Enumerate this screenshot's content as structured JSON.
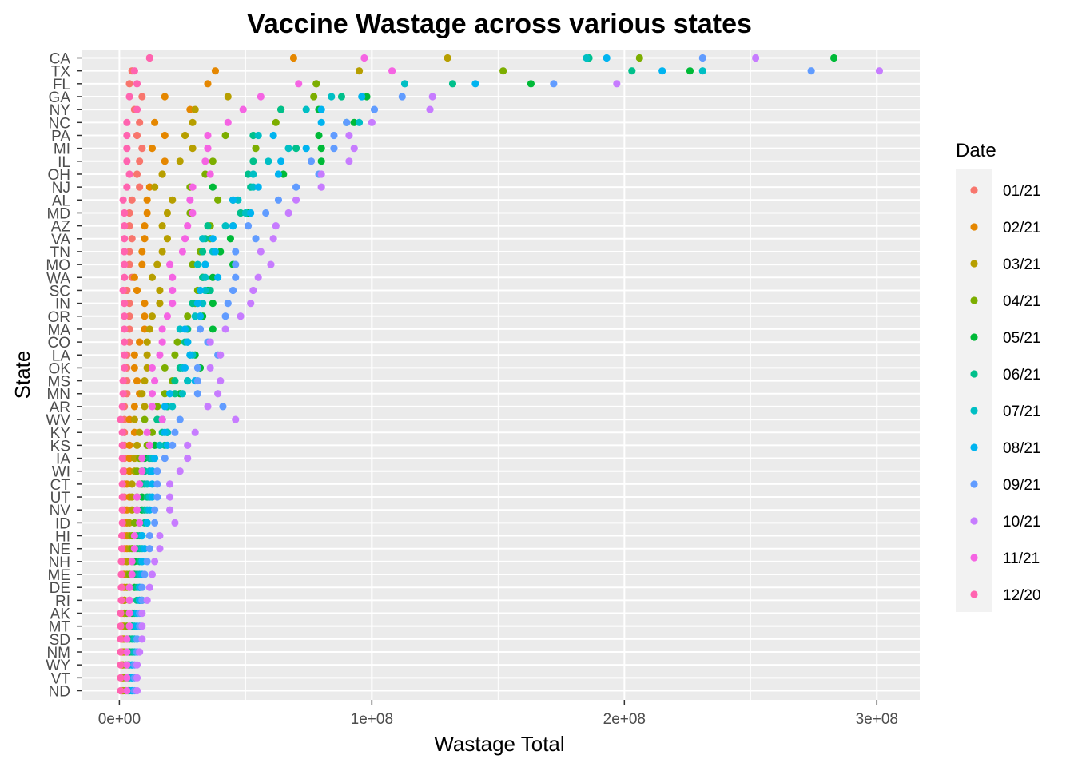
{
  "chart_data": {
    "type": "scatter",
    "title": "Vaccine Wastage across various states",
    "xlabel": "Wastage Total",
    "ylabel": "State",
    "xlim": [
      -15000000,
      317000000
    ],
    "x_ticks": [
      0,
      100000000,
      200000000,
      300000000
    ],
    "x_tick_labels": [
      "0e+00",
      "1e+08",
      "2e+08",
      "3e+08"
    ],
    "grid": true,
    "legend": {
      "title": "Date",
      "position": "right"
    },
    "categories": [
      "CA",
      "TX",
      "FL",
      "GA",
      "NY",
      "NC",
      "PA",
      "MI",
      "IL",
      "OH",
      "NJ",
      "AL",
      "MD",
      "AZ",
      "VA",
      "TN",
      "MO",
      "WA",
      "SC",
      "IN",
      "OR",
      "MA",
      "CO",
      "LA",
      "OK",
      "MS",
      "MN",
      "AR",
      "WV",
      "KY",
      "KS",
      "IA",
      "WI",
      "CT",
      "UT",
      "NV",
      "ID",
      "HI",
      "NE",
      "NH",
      "ME",
      "DE",
      "RI",
      "AK",
      "MT",
      "SD",
      "NM",
      "WY",
      "VT",
      "ND"
    ],
    "series": [
      {
        "name": "01/21",
        "color": "#F8766D",
        "values": [
          12,
          5,
          4,
          9,
          6,
          8,
          7,
          9,
          8,
          7,
          8,
          5,
          4,
          4,
          5,
          4,
          4,
          5,
          3,
          4,
          4,
          4,
          4,
          3,
          3,
          3,
          3,
          2,
          2,
          2,
          2,
          2,
          2,
          2,
          2,
          2,
          2,
          2,
          2,
          1.5,
          1.5,
          1.2,
          1.2,
          1,
          1,
          1,
          1,
          0.8,
          0.8,
          0.8
        ]
      },
      {
        "name": "02/21",
        "color": "#E58700",
        "values": [
          69,
          38,
          35,
          18,
          28,
          14,
          18,
          13,
          18,
          17,
          12,
          11,
          11,
          10,
          10,
          9,
          9,
          6,
          7,
          10,
          10,
          10,
          8,
          6,
          6,
          7,
          8,
          6,
          4,
          6,
          4,
          4,
          4,
          3,
          4,
          3,
          3,
          3,
          3,
          3,
          2,
          2,
          2,
          2,
          1.5,
          1.5,
          1.5,
          1.2,
          1.2,
          1.2
        ]
      },
      {
        "name": "03/21",
        "color": "#B79F00",
        "values": [
          130,
          95,
          78,
          43,
          30,
          29,
          26,
          29,
          24,
          17,
          14,
          21,
          19,
          17,
          19,
          17,
          15,
          13,
          16,
          16,
          13,
          12,
          11,
          11,
          11,
          10,
          9,
          10,
          6,
          8,
          7,
          6,
          6,
          5,
          5,
          5,
          4,
          4,
          4,
          3,
          3,
          3,
          2,
          2,
          2,
          2,
          2,
          1.5,
          1.5,
          1.5
        ]
      },
      {
        "name": "04/21",
        "color": "#7CAE00",
        "values": [
          206,
          152,
          78,
          77,
          64,
          62,
          42,
          54,
          37,
          34,
          28,
          39,
          28,
          36,
          36,
          32,
          29,
          33,
          31,
          30,
          27,
          27,
          23,
          22,
          18,
          21,
          18,
          15,
          10,
          13,
          11,
          8,
          7,
          8,
          7,
          7,
          6,
          5,
          5,
          5,
          4,
          4,
          4,
          3,
          3,
          3,
          3,
          2.5,
          2.5,
          2.5
        ]
      },
      {
        "name": "05/21",
        "color": "#00BA38",
        "values": [
          283,
          226,
          163,
          98,
          79,
          93,
          79,
          80,
          80,
          65,
          37,
          45,
          51,
          45,
          44,
          40,
          45,
          37,
          35,
          37,
          33,
          37,
          27,
          30,
          32,
          27,
          24,
          19,
          15,
          19,
          14,
          10,
          9,
          9,
          9,
          9,
          8,
          7,
          7,
          6,
          6,
          6,
          9,
          5,
          5,
          4,
          4,
          3.5,
          3.5,
          3.5
        ]
      },
      {
        "name": "06/21",
        "color": "#00C08B",
        "values": [
          186,
          203,
          132,
          88,
          64,
          90,
          53,
          70,
          53,
          51,
          52,
          45,
          48,
          35,
          34,
          33,
          34,
          33,
          36,
          29,
          32,
          27,
          26,
          28,
          24,
          22,
          22,
          19,
          15,
          17,
          18,
          12,
          10,
          10,
          11,
          10,
          10,
          8,
          8,
          8,
          7,
          7,
          7,
          6,
          5,
          5,
          5,
          4,
          4,
          4
        ]
      },
      {
        "name": "07/21",
        "color": "#00BFC4",
        "values": [
          185,
          231,
          113,
          84,
          74,
          95,
          55,
          67,
          59,
          53,
          53,
          47,
          50,
          42,
          33,
          37,
          31,
          34,
          34,
          33,
          30,
          24,
          27,
          29,
          25,
          27,
          25,
          21,
          17,
          19,
          16,
          13,
          12,
          11,
          12,
          11,
          11,
          9,
          9,
          9,
          8,
          8,
          8,
          7,
          6,
          6,
          6,
          5,
          5,
          5
        ]
      },
      {
        "name": "08/21",
        "color": "#00B4F0",
        "values": [
          193,
          215,
          141,
          96,
          80,
          80,
          61,
          74,
          64,
          63,
          55,
          45,
          52,
          45,
          37,
          38,
          34,
          39,
          32,
          31,
          32,
          26,
          27,
          28,
          26,
          30,
          20,
          18,
          17,
          18,
          19,
          14,
          13,
          13,
          13,
          12,
          11,
          9,
          10,
          9,
          9,
          8,
          8,
          7,
          7,
          7,
          7,
          5,
          5,
          5
        ]
      },
      {
        "name": "09/21",
        "color": "#619CFF",
        "values": [
          231,
          274,
          172,
          112,
          101,
          90,
          85,
          85,
          76,
          79,
          70,
          63,
          58,
          51,
          54,
          46,
          46,
          46,
          45,
          43,
          42,
          32,
          35,
          39,
          31,
          31,
          31,
          41,
          24,
          22,
          21,
          18,
          15,
          15,
          15,
          14,
          14,
          12,
          12,
          11,
          10,
          9,
          9,
          8,
          8,
          7,
          7,
          6,
          6,
          6
        ]
      },
      {
        "name": "10/21",
        "color": "#C77CFF",
        "values": [
          252,
          301,
          197,
          124,
          123,
          100,
          91,
          93,
          91,
          80,
          80,
          70,
          67,
          62,
          61,
          56,
          60,
          55,
          53,
          52,
          48,
          42,
          36,
          40,
          36,
          40,
          39,
          35,
          46,
          30,
          27,
          27,
          24,
          20,
          20,
          20,
          22,
          16,
          16,
          14,
          13,
          12,
          11,
          9,
          9,
          9,
          8,
          7,
          7,
          7
        ]
      },
      {
        "name": "11/21",
        "color": "#F564E3",
        "values": [
          97,
          108,
          71,
          56,
          49,
          43,
          35,
          35,
          34,
          36,
          29,
          28,
          29,
          27,
          26,
          25,
          20,
          21,
          21,
          21,
          19,
          17,
          17,
          16,
          13,
          14,
          13,
          13,
          17,
          11,
          12,
          9,
          9,
          8,
          7,
          7,
          8,
          6,
          6,
          5,
          5,
          4,
          4,
          4,
          4,
          3,
          3,
          3,
          3,
          3
        ]
      },
      {
        "name": "12/20",
        "color": "#FF64B0",
        "values": [
          12,
          6,
          7,
          4,
          7,
          3,
          3,
          3,
          3,
          4,
          3,
          1.5,
          2,
          2,
          2,
          2,
          2,
          2,
          1.5,
          2,
          2,
          2,
          2,
          2,
          2,
          1.5,
          1.5,
          1.2,
          0.5,
          1.2,
          1.2,
          1.2,
          1.5,
          1.2,
          1.2,
          1.2,
          1.2,
          1,
          1,
          0.8,
          0.8,
          0.8,
          0.8,
          0.5,
          0.5,
          0.5,
          0.5,
          0.5,
          0.5,
          0.5
        ]
      }
    ]
  }
}
